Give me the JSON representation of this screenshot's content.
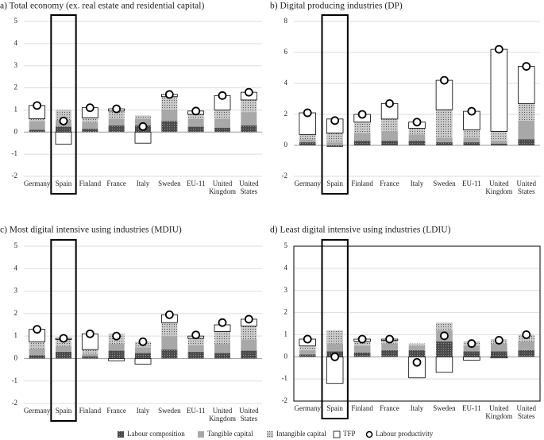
{
  "legend": [
    {
      "name": "Labour composition",
      "color": "#4a4a4a"
    },
    {
      "name": "Tangible capital",
      "color": "#a8a8a8"
    },
    {
      "name": "Intangible capital",
      "color": "#c9c9c9"
    },
    {
      "name": "TFP",
      "color": "#ffffff"
    },
    {
      "name": "Labour productivity",
      "color": "#ffffff"
    }
  ],
  "chart_data": [
    {
      "type": "stacked_bar",
      "title": "a) Total economy (ex. real estate and residential capital)",
      "categories": [
        "Germany",
        "Spain",
        "Finland",
        "France",
        "Italy",
        "Sweden",
        "EU-11",
        "United Kingdom",
        "United States"
      ],
      "ylim": [
        -2,
        5
      ],
      "yticks": [
        -2,
        -1,
        0,
        1,
        2,
        3,
        4,
        5
      ],
      "series": [
        {
          "values": [
            0.1,
            0.25,
            0.15,
            0.3,
            0.3,
            0.5,
            0.25,
            0.2,
            0.3
          ]
        },
        {
          "values": [
            0.4,
            0.3,
            0.3,
            0.3,
            0.3,
            0.5,
            0.35,
            0.4,
            0.6
          ]
        },
        {
          "values": [
            0.1,
            0.45,
            0.2,
            0.35,
            0.15,
            0.6,
            0.2,
            0.4,
            0.55
          ]
        },
        {
          "values": [
            0.6,
            -0.55,
            0.45,
            0.1,
            -0.5,
            0.1,
            0.15,
            0.65,
            0.35
          ]
        },
        {
          "type": "scatter",
          "values": [
            1.2,
            0.5,
            1.1,
            1.05,
            0.25,
            1.7,
            0.95,
            1.65,
            1.8
          ]
        }
      ]
    },
    {
      "type": "stacked_bar",
      "title": "b) Digital producing industries (DP)",
      "categories": [
        "Germany",
        "Spain",
        "Finland",
        "France",
        "Italy",
        "Sweden",
        "EU-11",
        "United Kingdom",
        "United States"
      ],
      "ylim": [
        -2,
        8
      ],
      "yticks": [
        -2,
        0,
        2,
        4,
        6,
        8
      ],
      "series": [
        {
          "values": [
            0.2,
            -0.1,
            0.3,
            0.3,
            0.3,
            0.2,
            0.2,
            0.1,
            0.4
          ]
        },
        {
          "values": [
            0.2,
            0.2,
            0.5,
            0.6,
            0.4,
            0.3,
            0.3,
            0.2,
            1.2
          ]
        },
        {
          "values": [
            0.3,
            0.6,
            0.7,
            0.8,
            0.4,
            1.8,
            0.5,
            0.6,
            1.1
          ]
        },
        {
          "values": [
            1.4,
            0.9,
            0.5,
            1.0,
            0.4,
            1.9,
            1.2,
            5.3,
            2.4
          ]
        },
        {
          "type": "scatter",
          "values": [
            2.1,
            1.6,
            2.0,
            2.7,
            1.5,
            4.2,
            2.2,
            6.2,
            5.1
          ]
        }
      ]
    },
    {
      "type": "stacked_bar",
      "title": "c) Most digital intensive using industries (MDIU)",
      "categories": [
        "Germany",
        "Spain",
        "Finland",
        "France",
        "Italy",
        "Sweden",
        "EU-11",
        "United Kingdom",
        "United States"
      ],
      "ylim": [
        -2,
        5
      ],
      "yticks": [
        -2,
        -1,
        0,
        1,
        2,
        3,
        4,
        5
      ],
      "series": [
        {
          "values": [
            0.15,
            0.3,
            0.1,
            0.35,
            0.25,
            0.4,
            0.3,
            0.25,
            0.35
          ]
        },
        {
          "values": [
            0.3,
            0.25,
            0.1,
            0.3,
            0.25,
            0.6,
            0.3,
            0.4,
            0.5
          ]
        },
        {
          "values": [
            0.3,
            0.3,
            0.2,
            0.45,
            0.25,
            0.6,
            0.3,
            0.55,
            0.6
          ]
        },
        {
          "values": [
            0.55,
            0.05,
            0.7,
            -0.1,
            -0.25,
            0.35,
            0.1,
            0.3,
            0.3
          ]
        },
        {
          "type": "scatter",
          "values": [
            1.3,
            0.9,
            1.1,
            1.0,
            0.75,
            1.95,
            1.05,
            1.6,
            1.75
          ]
        }
      ]
    },
    {
      "type": "stacked_bar",
      "title": "d) Least digital intensive using industries (LDIU)",
      "categories": [
        "Germany",
        "Spain",
        "Finland",
        "France",
        "Italy",
        "Sweden",
        "EU-11",
        "United Kingdom",
        "United States"
      ],
      "ylim": [
        -2,
        5
      ],
      "yticks": [
        -2,
        -1,
        0,
        1,
        2,
        3,
        4,
        5
      ],
      "series": [
        {
          "values": [
            0.1,
            0.25,
            0.2,
            0.3,
            0.3,
            0.7,
            0.25,
            0.25,
            0.3
          ]
        },
        {
          "values": [
            0.2,
            0.35,
            0.3,
            0.3,
            0.2,
            0.5,
            0.25,
            0.35,
            0.4
          ]
        },
        {
          "values": [
            0.2,
            0.6,
            0.2,
            0.15,
            0.1,
            0.35,
            0.2,
            0.2,
            0.3
          ]
        },
        {
          "values": [
            0.3,
            -1.2,
            0.1,
            0.05,
            -0.95,
            -0.7,
            -0.15,
            -0.05,
            0.0
          ]
        },
        {
          "type": "scatter",
          "values": [
            0.8,
            0.0,
            0.8,
            0.8,
            -0.25,
            0.95,
            0.6,
            0.75,
            1.0
          ]
        }
      ]
    }
  ]
}
